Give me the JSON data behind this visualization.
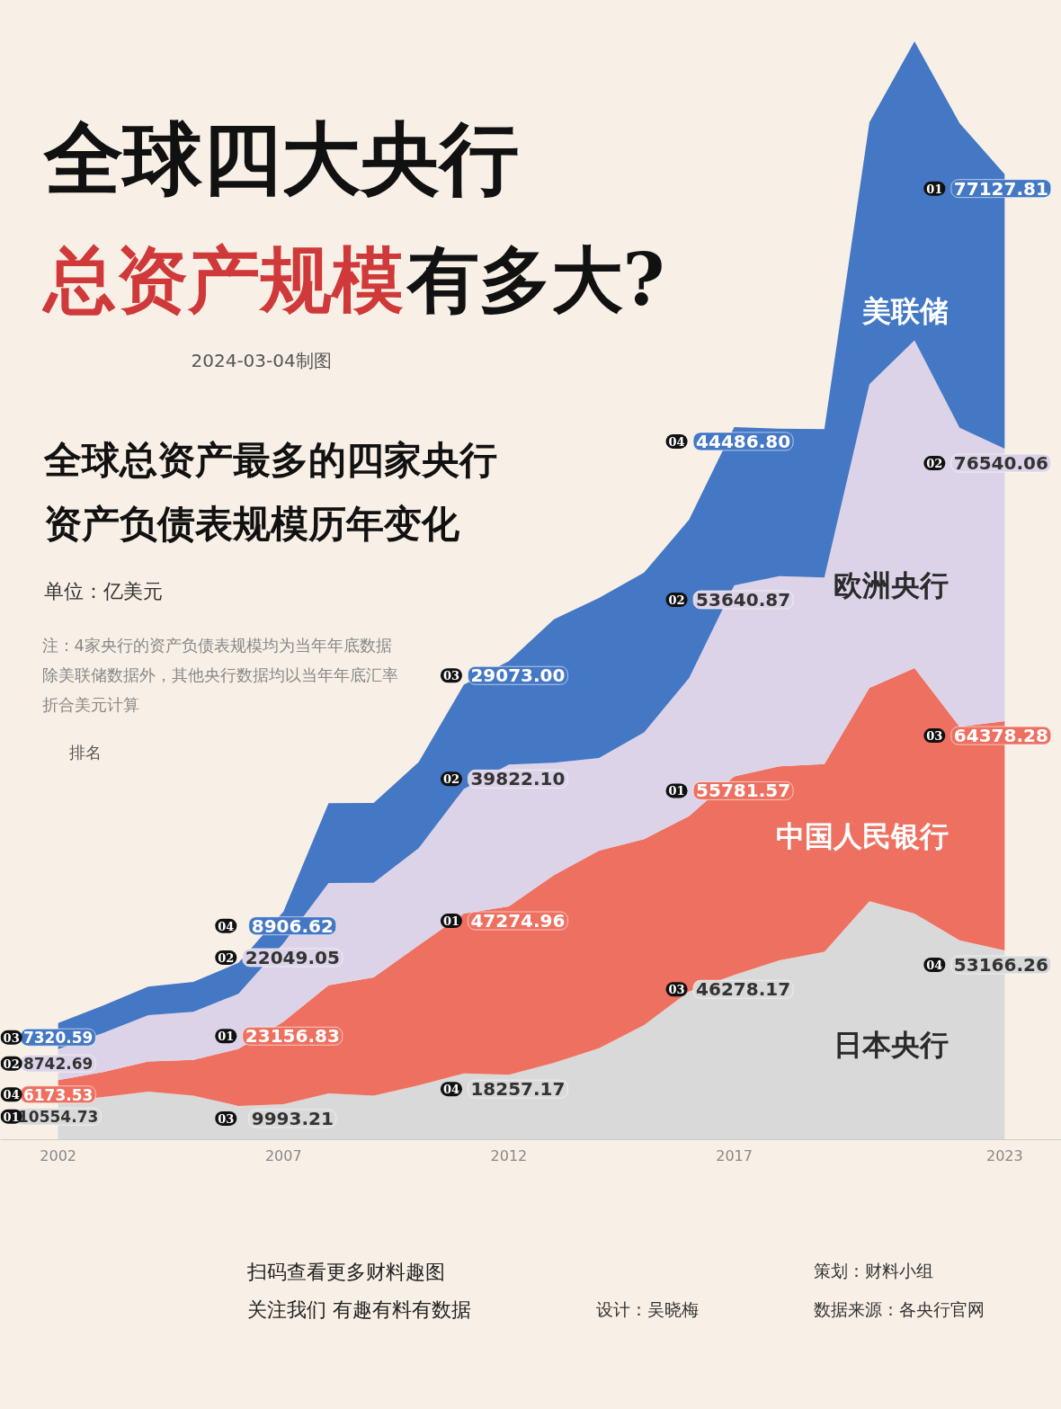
{
  "chart_data": {
    "type": "area",
    "stacked": true,
    "title": "全球四大央行总资产规模有多大?",
    "subtitle": "全球总资产最多的四家央行资产负债表规模历年变化",
    "x": [
      2002,
      2003,
      2004,
      2005,
      2006,
      2007,
      2008,
      2009,
      2010,
      2011,
      2012,
      2013,
      2014,
      2015,
      2016,
      2017,
      2018,
      2019,
      2020,
      2021,
      2022,
      2023
    ],
    "xlim": [
      2000.72,
      2024.26
    ],
    "xticks": [
      2002,
      2007,
      2012,
      2017,
      2023
    ],
    "ylim": [
      0,
      320000
    ],
    "tick_labels": "x",
    "grid": false,
    "series": [
      {
        "name": "日本央行",
        "color": "#d9d9d9",
        "values": [
          10554.73,
          12000,
          13500,
          12400,
          9500,
          9993.21,
          13000,
          12400,
          15300,
          18600,
          18257.17,
          21600,
          25700,
          32200,
          41700,
          46278.17,
          50400,
          52800,
          67000,
          63500,
          56000,
          53166.26
        ],
        "value_labels": [
          "10554.73",
          null,
          null,
          null,
          null,
          "9993.21",
          null,
          null,
          null,
          null,
          "18257.17",
          null,
          null,
          null,
          null,
          "46278.17",
          null,
          null,
          null,
          null,
          null,
          "53166.26"
        ]
      },
      {
        "name": "中国人民银行",
        "color": "#ee7060",
        "values": [
          6173.53,
          7000,
          8500,
          10000,
          16000,
          23156.83,
          30400,
          33200,
          39300,
          44900,
          47274.96,
          52700,
          55500,
          52200,
          49200,
          55781.57,
          54500,
          52700,
          59900,
          69000,
          60000,
          64378.28
        ],
        "value_labels": [
          "6173.53",
          null,
          null,
          null,
          null,
          "23156.83",
          null,
          null,
          null,
          null,
          "47274.96",
          null,
          null,
          null,
          null,
          "55781.57",
          null,
          null,
          null,
          null,
          null,
          "64378.28"
        ]
      },
      {
        "name": "欧洲央行",
        "color": "#dcd3e8",
        "values": [
          8742.69,
          11000,
          13000,
          13500,
          15500,
          22049.05,
          28700,
          26600,
          27300,
          35000,
          39822.1,
          31600,
          26000,
          30000,
          38800,
          53640.87,
          53400,
          52400,
          85300,
          92000,
          84000,
          76540.06
        ],
        "value_labels": [
          "8742.69",
          null,
          null,
          null,
          null,
          "22049.05",
          null,
          null,
          null,
          null,
          "39822.10",
          null,
          null,
          null,
          null,
          "53640.87",
          null,
          null,
          null,
          null,
          null,
          "76540.06"
        ]
      },
      {
        "name": "美联储",
        "color": "#4477c4",
        "values": [
          7320.59,
          7700,
          8000,
          8400,
          8700,
          8906.62,
          22400,
          22400,
          24200,
          29300,
          29073.0,
          40300,
          45000,
          44900,
          44500,
          44486.8,
          41400,
          41700,
          73600,
          84000,
          85500,
          77127.81
        ],
        "value_labels": [
          "7320.59",
          null,
          null,
          null,
          null,
          "8906.62",
          null,
          null,
          null,
          null,
          "29073.00",
          null,
          null,
          null,
          null,
          "44486.80",
          null,
          null,
          null,
          null,
          null,
          "77127.81"
        ]
      }
    ],
    "annotations": [
      "2024-03-04制图",
      "单位：亿美元",
      "注：4家央行的资产负债表规模均为当年年底数据",
      "除美联储数据外，其他央行数据均以当年年底汇率",
      "折合美元计算",
      "排名",
      "扫码查看更多财料趣图",
      "关注我们 有趣有料有数据",
      "设计：吴晓梅",
      "策划：财料小组",
      "数据来源：各央行官网",
      "01",
      "03",
      "04",
      "03",
      "04",
      "04",
      "01",
      "01",
      "01",
      "03",
      "02",
      "02",
      "02",
      "02",
      "02",
      "03",
      "04",
      "03",
      "04",
      "01"
    ]
  }
}
